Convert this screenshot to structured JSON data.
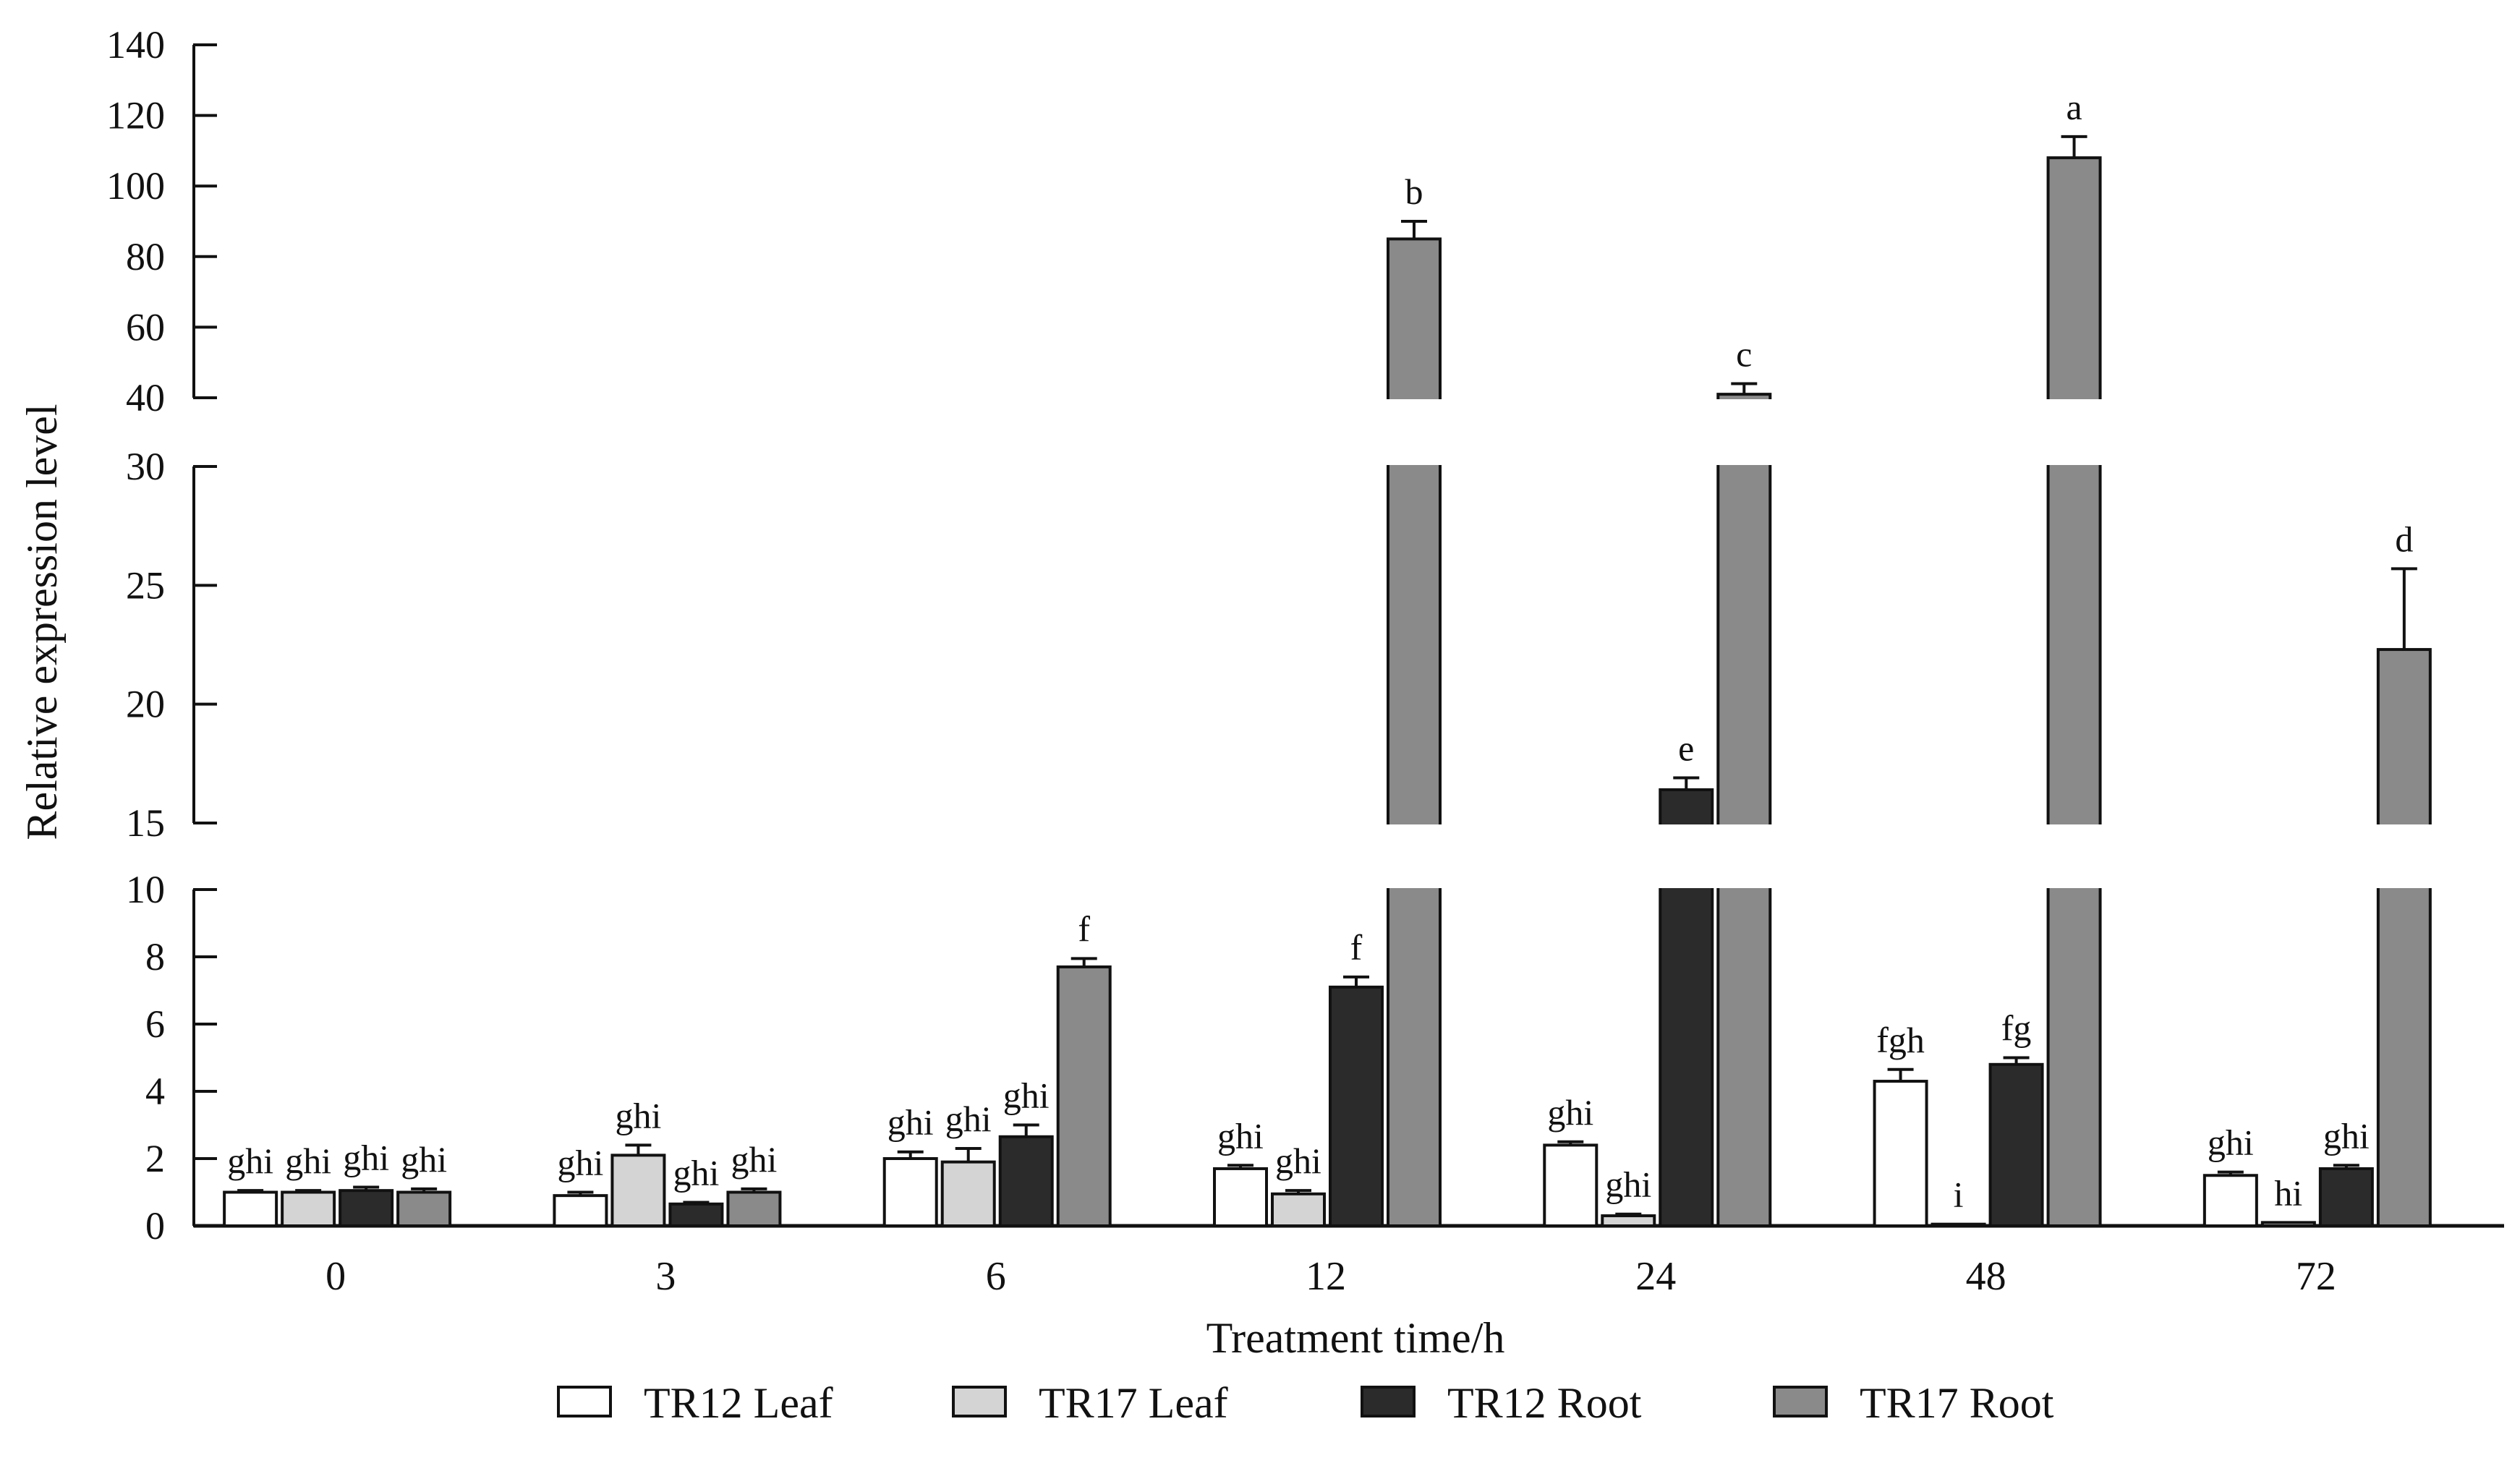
{
  "chart_data": {
    "type": "bar",
    "xlabel": "Treatment time/h",
    "ylabel": "Relative expression level",
    "categories": [
      "0",
      "3",
      "6",
      "12",
      "24",
      "48",
      "72"
    ],
    "y_axis_segments": [
      {
        "range": [
          0,
          10
        ],
        "ticks": [
          "0",
          "2",
          "4",
          "6",
          "8",
          "10"
        ]
      },
      {
        "range": [
          15,
          30
        ],
        "ticks": [
          "15",
          "20",
          "25",
          "30"
        ]
      },
      {
        "range": [
          40,
          140
        ],
        "ticks": [
          "40",
          "60",
          "80",
          "100",
          "120",
          "140"
        ]
      }
    ],
    "legend_position": "bottom",
    "grid": false,
    "series": [
      {
        "name": "TR12 Leaf",
        "color": "#ffffff",
        "values": [
          1.0,
          0.9,
          2.0,
          1.7,
          2.4,
          4.3,
          1.5
        ],
        "errors": [
          0.05,
          0.1,
          0.2,
          0.1,
          0.1,
          0.35,
          0.1
        ],
        "letters": [
          "ghi",
          "ghi",
          "ghi",
          "ghi",
          "ghi",
          "fgh",
          "ghi"
        ]
      },
      {
        "name": "TR17 Leaf",
        "color": "#d4d4d4",
        "values": [
          1.0,
          2.1,
          1.9,
          0.95,
          0.3,
          0.05,
          0.1
        ],
        "errors": [
          0.05,
          0.3,
          0.4,
          0.1,
          0.05,
          0.0,
          0.0
        ],
        "letters": [
          "ghi",
          "ghi",
          "ghi",
          "ghi",
          "ghi",
          "i",
          "hi"
        ]
      },
      {
        "name": "TR12 Root",
        "color": "#2b2b2b",
        "values": [
          1.05,
          0.65,
          2.65,
          7.1,
          16.4,
          4.8,
          1.7
        ],
        "errors": [
          0.1,
          0.05,
          0.35,
          0.3,
          0.5,
          0.2,
          0.1
        ],
        "letters": [
          "ghi",
          "ghi",
          "ghi",
          "f",
          "e",
          "fg",
          "ghi"
        ]
      },
      {
        "name": "TR17 Root",
        "color": "#8a8a8a",
        "values": [
          1.0,
          1.0,
          7.7,
          85,
          41,
          108,
          22.3
        ],
        "errors": [
          0.1,
          0.1,
          0.25,
          5,
          3,
          6,
          3.4
        ],
        "letters": [
          "ghi",
          "ghi",
          "f",
          "b",
          "c",
          "a",
          "d"
        ]
      }
    ]
  }
}
